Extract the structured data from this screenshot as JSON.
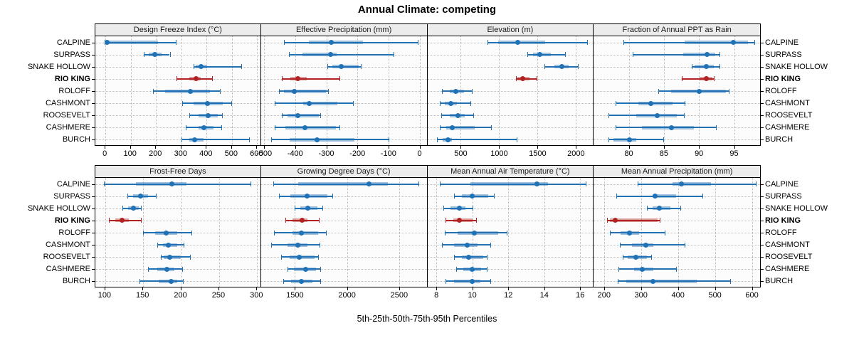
{
  "title": "Annual Climate: competing",
  "caption": "5th-25th-50th-75th-95th Percentiles",
  "colors": {
    "series": "#2171B5",
    "highlight": "#B22222",
    "grid": "#BDBDBD",
    "header_bg": "#ECECEC",
    "panel_bg": "#FCFCFC"
  },
  "chart_data": {
    "type": "dotplot-intervals",
    "percentiles": [
      5,
      25,
      50,
      75,
      95
    ],
    "legend": "thin line = 5th-95th, thick band = 25th-75th, dot = 50th percentile",
    "sites": [
      "CALPINE",
      "SURPASS",
      "SNAKE HOLLOW",
      "RIO KING",
      "ROLOFF",
      "CASHMONT",
      "ROOSEVELT",
      "CASHMERE",
      "BURCH"
    ],
    "highlight_site": "RIO KING",
    "panels": [
      {
        "title": "Design Freeze Index (°C)",
        "slug": "design-freeze-index",
        "row": 0,
        "col": 0,
        "xlim": [
          -40,
          618
        ],
        "ticks": [
          0,
          100,
          200,
          300,
          400,
          500,
          600
        ],
        "values": [
          [
            0,
            5,
            10,
            210,
            280
          ],
          [
            153,
            175,
            197,
            225,
            257
          ],
          [
            350,
            360,
            380,
            405,
            540
          ],
          [
            285,
            335,
            362,
            380,
            425
          ],
          [
            190,
            240,
            340,
            415,
            455
          ],
          [
            305,
            352,
            405,
            467,
            500
          ],
          [
            335,
            370,
            408,
            448,
            465
          ],
          [
            320,
            370,
            392,
            430,
            462
          ],
          [
            303,
            335,
            355,
            390,
            570
          ]
        ]
      },
      {
        "title": "Effective Precipitation (mm)",
        "slug": "effective-precipitation",
        "row": 0,
        "col": 1,
        "xlim": [
          -510,
          25
        ],
        "ticks": [
          -500,
          -400,
          -300,
          -200,
          -100,
          0
        ],
        "values": [
          [
            -437,
            -356,
            -284,
            -182,
            -5
          ],
          [
            -420,
            -376,
            -286,
            -266,
            -84
          ],
          [
            -296,
            -281,
            -251,
            -196,
            -190
          ],
          [
            -444,
            -416,
            -391,
            -364,
            -257
          ],
          [
            -453,
            -437,
            -403,
            -300,
            -295
          ],
          [
            -466,
            -375,
            -355,
            -264,
            -214
          ],
          [
            -444,
            -424,
            -392,
            -324,
            -320
          ],
          [
            -466,
            -432,
            -369,
            -268,
            -258
          ],
          [
            -478,
            -419,
            -329,
            -209,
            -99
          ]
        ]
      },
      {
        "title": "Elevation (m)",
        "slug": "elevation",
        "row": 0,
        "col": 2,
        "xlim": [
          65,
          2230
        ],
        "ticks": [
          500,
          1000,
          1500,
          2000
        ],
        "values": [
          [
            845,
            990,
            1245,
            1600,
            2145
          ],
          [
            1365,
            1445,
            1528,
            1675,
            1855
          ],
          [
            1590,
            1715,
            1820,
            1905,
            2020
          ],
          [
            1215,
            1240,
            1308,
            1390,
            1485
          ],
          [
            255,
            355,
            438,
            540,
            640
          ],
          [
            225,
            292,
            375,
            447,
            623
          ],
          [
            245,
            355,
            463,
            556,
            663
          ],
          [
            225,
            308,
            392,
            680,
            890
          ],
          [
            190,
            261,
            329,
            385,
            1230
          ]
        ]
      },
      {
        "title": "Fraction of Annual PPT as Rain",
        "slug": "fraction-ppt-as-rain",
        "row": 0,
        "col": 3,
        "xlim": [
          75,
          98.7
        ],
        "ticks": [
          80,
          85,
          90,
          95
        ],
        "values": [
          [
            79.2,
            88,
            94.9,
            97,
            97.9
          ],
          [
            80.6,
            87.8,
            91.1,
            92.3,
            92.9
          ],
          [
            89,
            89.4,
            91,
            92.1,
            92.9
          ],
          [
            87.5,
            90.1,
            91,
            91.9,
            92.1
          ],
          [
            84.2,
            86,
            90,
            93.8,
            94.2
          ],
          [
            78.1,
            81.4,
            83.1,
            86.2,
            88
          ],
          [
            77.1,
            81.1,
            84,
            86.8,
            87.9
          ],
          [
            78.1,
            81.9,
            86.1,
            89.3,
            92.4
          ],
          [
            77.1,
            77.8,
            80.1,
            81.1,
            84.9
          ]
        ]
      },
      {
        "title": "Frost-Free Days",
        "slug": "frost-free-days",
        "row": 1,
        "col": 0,
        "xlim": [
          87,
          306
        ],
        "ticks": [
          100,
          150,
          200,
          250,
          300
        ],
        "values": [
          [
            99,
            141,
            189,
            208,
            292
          ],
          [
            130,
            138,
            147,
            157,
            168
          ],
          [
            124,
            131,
            138,
            145,
            148
          ],
          [
            106,
            114,
            123,
            132,
            148
          ],
          [
            151,
            167,
            181,
            196,
            214
          ],
          [
            169,
            177,
            184,
            196,
            204
          ],
          [
            174,
            178,
            186,
            200,
            213
          ],
          [
            157,
            169,
            182,
            192,
            202
          ],
          [
            146,
            171,
            188,
            196,
            203
          ]
        ]
      },
      {
        "title": "Growing Degree Days (°C)",
        "slug": "growing-degree-days",
        "row": 1,
        "col": 1,
        "xlim": [
          1175,
          2770
        ],
        "ticks": [
          1500,
          2000,
          2500
        ],
        "values": [
          [
            1295,
            1530,
            2210,
            2390,
            2685
          ],
          [
            1350,
            1455,
            1620,
            1810,
            1860
          ],
          [
            1500,
            1550,
            1625,
            1715,
            1765
          ],
          [
            1410,
            1480,
            1570,
            1620,
            1730
          ],
          [
            1300,
            1475,
            1560,
            1725,
            1795
          ],
          [
            1275,
            1430,
            1530,
            1620,
            1735
          ],
          [
            1370,
            1450,
            1545,
            1690,
            1725
          ],
          [
            1430,
            1490,
            1600,
            1700,
            1740
          ],
          [
            1390,
            1460,
            1560,
            1665,
            1740
          ]
        ]
      },
      {
        "title": "Mean Annual Air Temperature (°C)",
        "slug": "mean-annual-air-temperature",
        "row": 1,
        "col": 2,
        "xlim": [
          7.5,
          16.75
        ],
        "ticks": [
          8,
          10,
          12,
          14,
          16
        ],
        "values": [
          [
            8.2,
            9.9,
            13.6,
            14.2,
            16.3
          ],
          [
            9,
            9.4,
            10,
            10.9,
            11.2
          ],
          [
            8.4,
            8.8,
            9.3,
            9.6,
            10
          ],
          [
            8.5,
            8.95,
            9.3,
            10,
            10.2
          ],
          [
            8.45,
            9.2,
            10.1,
            11.45,
            11.9
          ],
          [
            8.3,
            9,
            9.7,
            10.3,
            11
          ],
          [
            9,
            9.4,
            9.8,
            10.6,
            10.8
          ],
          [
            9.1,
            9.5,
            10,
            10.5,
            10.8
          ],
          [
            8.5,
            9,
            10,
            10.45,
            11
          ]
        ]
      },
      {
        "title": "Mean Annual Precipitation (mm)",
        "slug": "mean-annual-precipitation",
        "row": 1,
        "col": 3,
        "xlim": [
          172,
          622
        ],
        "ticks": [
          200,
          300,
          400,
          500,
          600
        ],
        "values": [
          [
            290,
            385,
            410,
            490,
            610
          ],
          [
            234,
            331,
            338,
            395,
            467
          ],
          [
            316,
            331,
            350,
            379,
            406
          ],
          [
            208,
            215,
            231,
            345,
            350
          ],
          [
            215,
            244,
            268,
            295,
            364
          ],
          [
            242,
            276,
            313,
            334,
            417
          ],
          [
            250,
            264,
            287,
            315,
            327
          ],
          [
            239,
            282,
            303,
            334,
            395
          ],
          [
            237,
            260,
            332,
            450,
            541
          ]
        ]
      }
    ]
  }
}
